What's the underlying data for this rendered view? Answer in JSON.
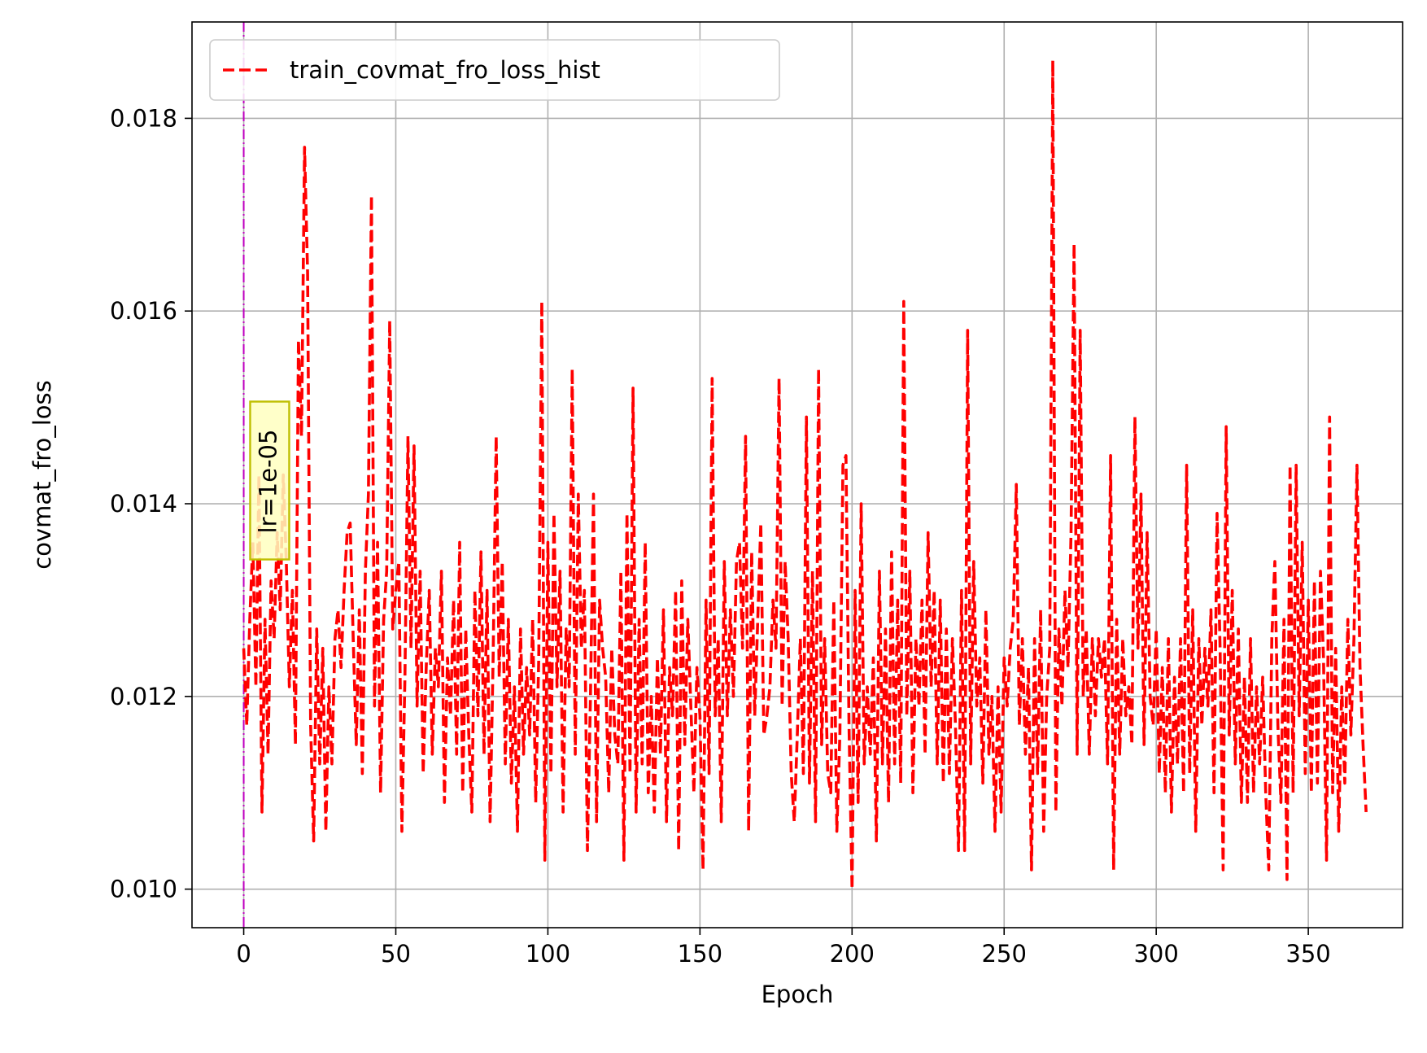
{
  "chart_data": {
    "type": "line",
    "title": "",
    "xlabel": "Epoch",
    "ylabel": "covmat_fro_loss",
    "xlim": [
      -17,
      381
    ],
    "ylim": [
      0.0096,
      0.019
    ],
    "xticks": [
      0,
      50,
      100,
      150,
      200,
      250,
      300,
      350
    ],
    "yticks": [
      0.01,
      0.012,
      0.014,
      0.016,
      0.018
    ],
    "xtick_labels": [
      "0",
      "50",
      "100",
      "150",
      "200",
      "250",
      "300",
      "350"
    ],
    "ytick_labels": [
      "0.010",
      "0.012",
      "0.014",
      "0.016",
      "0.018"
    ],
    "grid": true,
    "legend_position": "top-left",
    "series": [
      {
        "name": "train_covmat_fro_loss_hist",
        "color": "#ff0000",
        "line_style": "dashed",
        "x_start": 0,
        "x_step": 1,
        "values": [
          0.0125,
          0.0117,
          0.0128,
          0.0136,
          0.0121,
          0.0143,
          0.0108,
          0.0128,
          0.0114,
          0.0132,
          0.0126,
          0.0137,
          0.0129,
          0.0143,
          0.0134,
          0.0121,
          0.0131,
          0.0115,
          0.0157,
          0.0147,
          0.0177,
          0.0164,
          0.0117,
          0.0105,
          0.0127,
          0.0113,
          0.0125,
          0.0106,
          0.0121,
          0.0113,
          0.0126,
          0.0129,
          0.0123,
          0.0131,
          0.0137,
          0.0138,
          0.0126,
          0.0115,
          0.0129,
          0.0112,
          0.0133,
          0.0141,
          0.0172,
          0.0119,
          0.0136,
          0.011,
          0.0128,
          0.0133,
          0.0159,
          0.0127,
          0.0131,
          0.0134,
          0.0106,
          0.0122,
          0.0147,
          0.0125,
          0.0146,
          0.0119,
          0.0133,
          0.0112,
          0.0123,
          0.0131,
          0.0114,
          0.0125,
          0.0121,
          0.0133,
          0.0109,
          0.0124,
          0.0118,
          0.013,
          0.0114,
          0.0136,
          0.011,
          0.0127,
          0.0116,
          0.0108,
          0.0131,
          0.0118,
          0.0135,
          0.0114,
          0.0131,
          0.0107,
          0.0124,
          0.0147,
          0.0122,
          0.0134,
          0.0113,
          0.0128,
          0.0111,
          0.0121,
          0.0106,
          0.0127,
          0.0114,
          0.0123,
          0.0116,
          0.0128,
          0.0109,
          0.0124,
          0.0161,
          0.0103,
          0.0136,
          0.0112,
          0.0139,
          0.0121,
          0.0133,
          0.0108,
          0.0127,
          0.0121,
          0.0154,
          0.0114,
          0.0141,
          0.0125,
          0.0131,
          0.0104,
          0.012,
          0.0141,
          0.0107,
          0.013,
          0.0125,
          0.0122,
          0.011,
          0.0125,
          0.0116,
          0.0113,
          0.0133,
          0.0103,
          0.0139,
          0.0112,
          0.0152,
          0.0108,
          0.0128,
          0.0113,
          0.0136,
          0.011,
          0.012,
          0.0108,
          0.0124,
          0.0114,
          0.0129,
          0.0107,
          0.0123,
          0.0118,
          0.0131,
          0.0104,
          0.0132,
          0.0115,
          0.0128,
          0.0119,
          0.011,
          0.0123,
          0.0118,
          0.0102,
          0.013,
          0.0112,
          0.0153,
          0.0118,
          0.0126,
          0.0107,
          0.0134,
          0.0118,
          0.0129,
          0.012,
          0.0134,
          0.0136,
          0.0125,
          0.0147,
          0.0106,
          0.0135,
          0.0118,
          0.0128,
          0.0138,
          0.0116,
          0.0118,
          0.0121,
          0.013,
          0.0125,
          0.0153,
          0.0119,
          0.0134,
          0.0126,
          0.0112,
          0.0107,
          0.0116,
          0.0126,
          0.0112,
          0.0149,
          0.0111,
          0.0133,
          0.0107,
          0.0154,
          0.0115,
          0.0126,
          0.0112,
          0.011,
          0.013,
          0.0106,
          0.0116,
          0.0144,
          0.0145,
          0.0117,
          0.01,
          0.0131,
          0.0109,
          0.014,
          0.0113,
          0.0121,
          0.0114,
          0.0124,
          0.0105,
          0.0133,
          0.0113,
          0.0127,
          0.0109,
          0.0135,
          0.0113,
          0.013,
          0.0111,
          0.0161,
          0.0118,
          0.0133,
          0.011,
          0.0126,
          0.0119,
          0.013,
          0.0114,
          0.0137,
          0.0121,
          0.0131,
          0.0113,
          0.013,
          0.0111,
          0.0127,
          0.0112,
          0.0126,
          0.0117,
          0.0104,
          0.0131,
          0.0104,
          0.0158,
          0.0113,
          0.0134,
          0.0119,
          0.0124,
          0.0111,
          0.0129,
          0.0114,
          0.012,
          0.0106,
          0.0121,
          0.0108,
          0.0124,
          0.0119,
          0.0125,
          0.0128,
          0.0142,
          0.0117,
          0.0126,
          0.0114,
          0.0123,
          0.0102,
          0.0126,
          0.0112,
          0.0129,
          0.0106,
          0.012,
          0.0125,
          0.0186,
          0.0108,
          0.0127,
          0.0119,
          0.0131,
          0.0123,
          0.0137,
          0.0167,
          0.0114,
          0.0158,
          0.012,
          0.0127,
          0.0114,
          0.0126,
          0.0118,
          0.0126,
          0.0122,
          0.0126,
          0.0113,
          0.0145,
          0.0102,
          0.0128,
          0.0114,
          0.0126,
          0.0118,
          0.0121,
          0.0115,
          0.0149,
          0.0125,
          0.0141,
          0.0115,
          0.0137,
          0.012,
          0.0117,
          0.0127,
          0.0112,
          0.0123,
          0.011,
          0.0126,
          0.0108,
          0.0122,
          0.0113,
          0.0126,
          0.011,
          0.0144,
          0.0112,
          0.0129,
          0.0106,
          0.0126,
          0.0117,
          0.0125,
          0.0119,
          0.0129,
          0.011,
          0.0139,
          0.0125,
          0.0102,
          0.0148,
          0.0116,
          0.0131,
          0.0113,
          0.0127,
          0.0109,
          0.0122,
          0.0109,
          0.0126,
          0.011,
          0.0121,
          0.0113,
          0.0122,
          0.011,
          0.0102,
          0.0126,
          0.0134,
          0.0117,
          0.0109,
          0.0128,
          0.0101,
          0.0144,
          0.011,
          0.0144,
          0.0118,
          0.0136,
          0.0112,
          0.013,
          0.011,
          0.0132,
          0.0111,
          0.0133,
          0.0124,
          0.0103,
          0.0149,
          0.011,
          0.0125,
          0.0106,
          0.0121,
          0.0111,
          0.0128,
          0.0116,
          0.0126,
          0.0144,
          0.0123,
          0.0115,
          0.0108
        ]
      }
    ],
    "vline": {
      "x": 0,
      "color": "#bf00bf",
      "line_style": "dashdot"
    },
    "annotation": {
      "text": "lr=1e-05",
      "x": 8,
      "y": 0.0143,
      "rotation": 90,
      "background": "#ffffc0",
      "border": "#bfbf00"
    }
  }
}
